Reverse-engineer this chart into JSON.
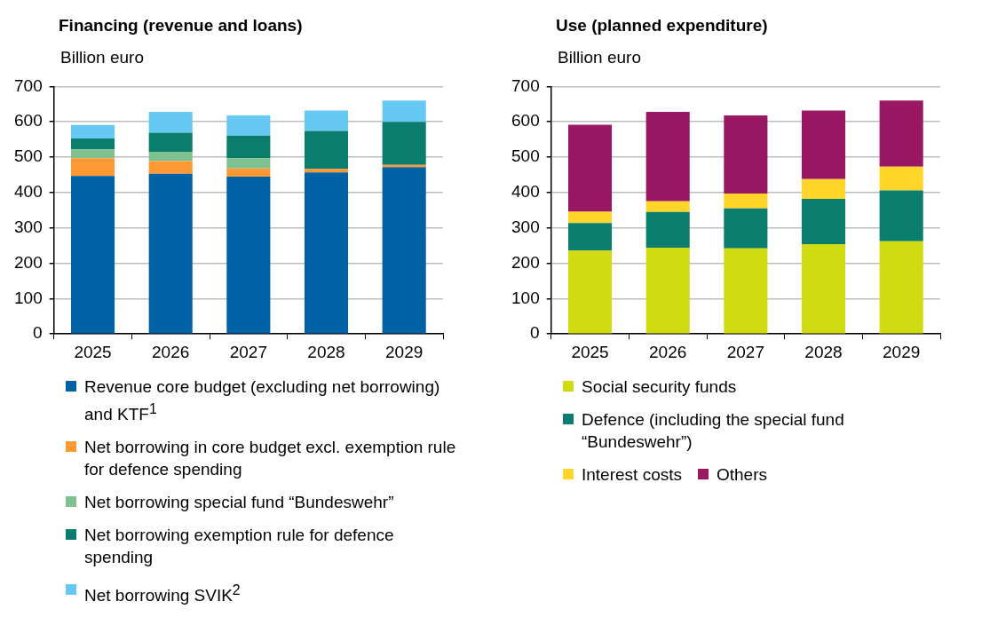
{
  "chart_data": [
    {
      "type": "bar",
      "title": "Financing (revenue and loans)",
      "ylabel": "Billion euro",
      "stacked": true,
      "categories": [
        "2025",
        "2026",
        "2027",
        "2028",
        "2029"
      ],
      "ylim": [
        0,
        700
      ],
      "yticks": [
        0,
        100,
        200,
        300,
        400,
        500,
        600,
        700
      ],
      "grid": "y",
      "legend": "bottom",
      "series": [
        {
          "name": "Revenue core budget (excluding net borrowing) and KTF$^{1}$",
          "color": "#0061a5",
          "values": [
            447,
            453,
            445,
            457,
            472
          ]
        },
        {
          "name": "Net borrowing in core budget excl. exemption rule for defence spending",
          "color": "#ff9933",
          "values": [
            50,
            36,
            23,
            10,
            6
          ]
        },
        {
          "name": "Net borrowing special fund “Bundeswehr”",
          "color": "#80c28f",
          "values": [
            25,
            26,
            29,
            0,
            0
          ]
        },
        {
          "name": "Net borrowing exemption rule for defence spending",
          "color": "#0a7d6e",
          "values": [
            31,
            54,
            64,
            107,
            122
          ]
        },
        {
          "name": "Net borrowing SVIK$^{2}$",
          "color": "#66c9f4",
          "values": [
            38,
            59,
            57,
            58,
            60
          ]
        }
      ]
    },
    {
      "type": "bar",
      "title": "Use (planned expenditure)",
      "ylabel": "Billion euro",
      "stacked": true,
      "categories": [
        "2025",
        "2026",
        "2027",
        "2028",
        "2029"
      ],
      "ylim": [
        0,
        700
      ],
      "yticks": [
        0,
        100,
        200,
        300,
        400,
        500,
        600,
        700
      ],
      "grid": "y",
      "legend": "bottom",
      "series": [
        {
          "name": "Social security funds",
          "color": "#d1db12",
          "values": [
            236,
            244,
            242,
            254,
            262
          ]
        },
        {
          "name": "Defence (including the special fund “Bundeswehr”)",
          "color": "#0a7d6e",
          "values": [
            78,
            101,
            113,
            128,
            144
          ]
        },
        {
          "name": "Interest costs",
          "color": "#ffd52a",
          "values": [
            32,
            30,
            42,
            56,
            67
          ]
        },
        {
          "name": "Others",
          "color": "#9a1863",
          "values": [
            246,
            253,
            221,
            194,
            187
          ]
        }
      ]
    }
  ]
}
